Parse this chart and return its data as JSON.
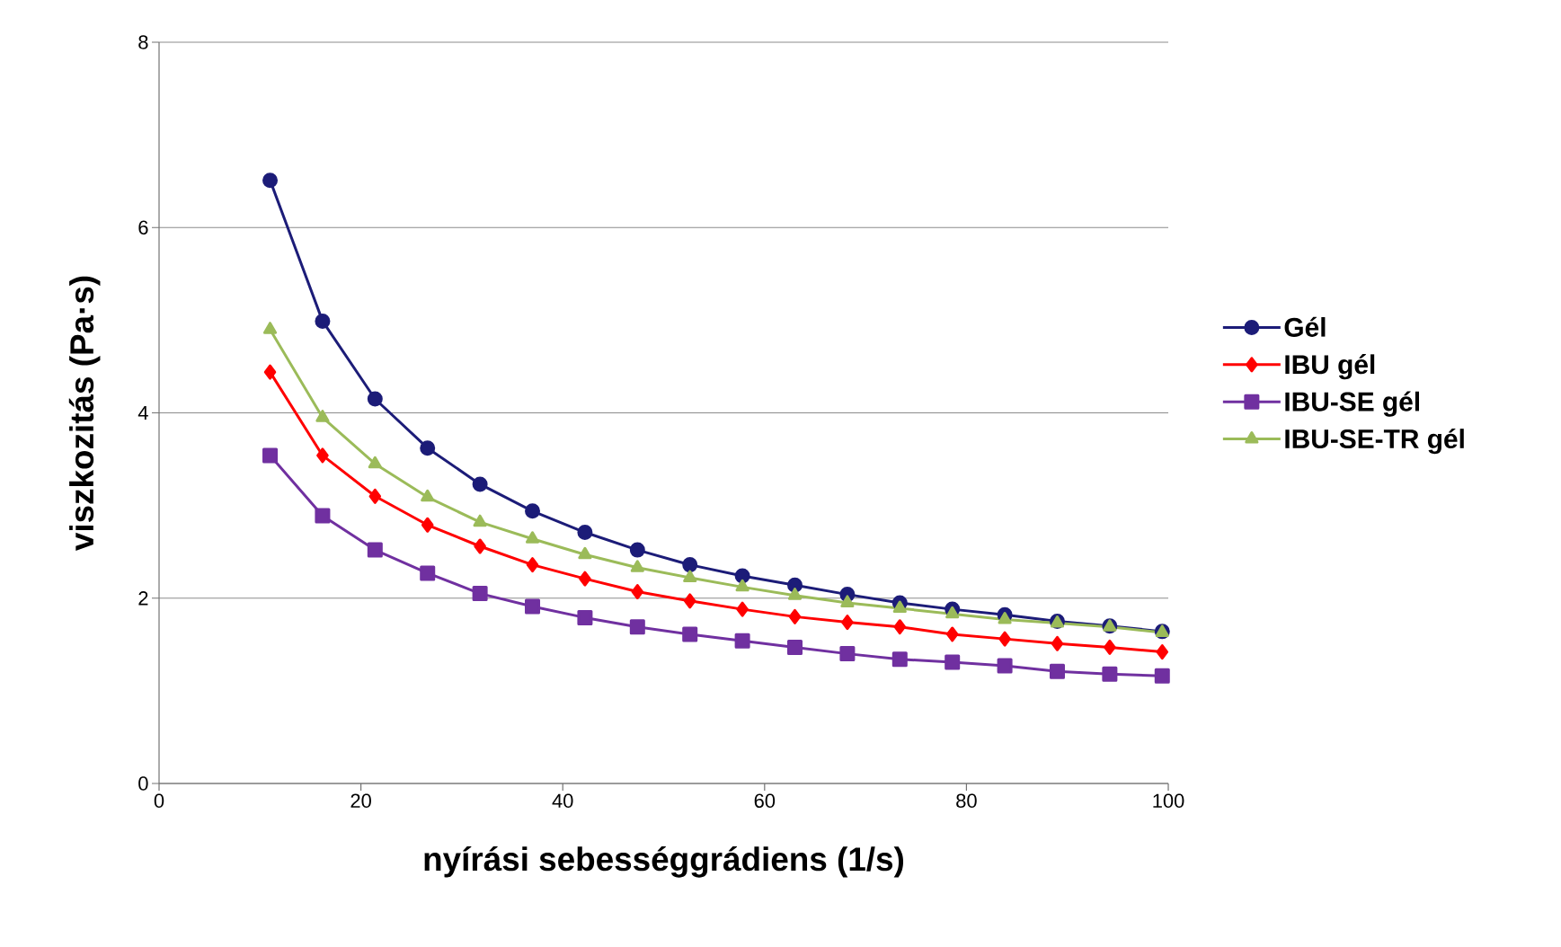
{
  "chart_data": {
    "type": "line",
    "xlabel": "nyírási sebességgrádiens (1/s)",
    "ylabel": "viszkozitás (Pa·s)",
    "x": [
      11,
      16.2,
      21.4,
      26.6,
      31.8,
      37,
      42.2,
      47.4,
      52.6,
      57.8,
      63,
      68.2,
      73.4,
      78.6,
      83.8,
      89,
      94.2,
      99.4
    ],
    "series": [
      {
        "name": "Gél",
        "color": "#1c1c78",
        "marker": "circle",
        "values": [
          6.51,
          4.99,
          4.15,
          3.62,
          3.23,
          2.94,
          2.71,
          2.52,
          2.36,
          2.24,
          2.14,
          2.04,
          1.95,
          1.88,
          1.82,
          1.75,
          1.7,
          1.64
        ]
      },
      {
        "name": "IBU gél",
        "color": "#ff0000",
        "marker": "diamond",
        "values": [
          4.44,
          3.54,
          3.1,
          2.79,
          2.56,
          2.36,
          2.21,
          2.07,
          1.97,
          1.88,
          1.8,
          1.74,
          1.69,
          1.61,
          1.56,
          1.51,
          1.47,
          1.42
        ]
      },
      {
        "name": "IBU-SE gél",
        "color": "#7030a0",
        "marker": "square",
        "values": [
          3.54,
          2.89,
          2.52,
          2.27,
          2.05,
          1.91,
          1.79,
          1.69,
          1.61,
          1.54,
          1.47,
          1.4,
          1.34,
          1.31,
          1.27,
          1.21,
          1.18,
          1.16
        ]
      },
      {
        "name": "IBU-SE-TR gél",
        "color": "#9bbb59",
        "marker": "triangle",
        "values": [
          4.9,
          3.95,
          3.45,
          3.09,
          2.82,
          2.64,
          2.47,
          2.33,
          2.22,
          2.12,
          2.03,
          1.95,
          1.89,
          1.83,
          1.77,
          1.73,
          1.69,
          1.63
        ]
      }
    ],
    "xlim": [
      0,
      100
    ],
    "xticks": [
      0,
      20,
      40,
      60,
      80,
      100
    ],
    "ylim": [
      0,
      8
    ],
    "yticks": [
      0,
      2,
      4,
      6,
      8
    ],
    "grid": "y",
    "legend": "right",
    "line_style": "solid"
  }
}
